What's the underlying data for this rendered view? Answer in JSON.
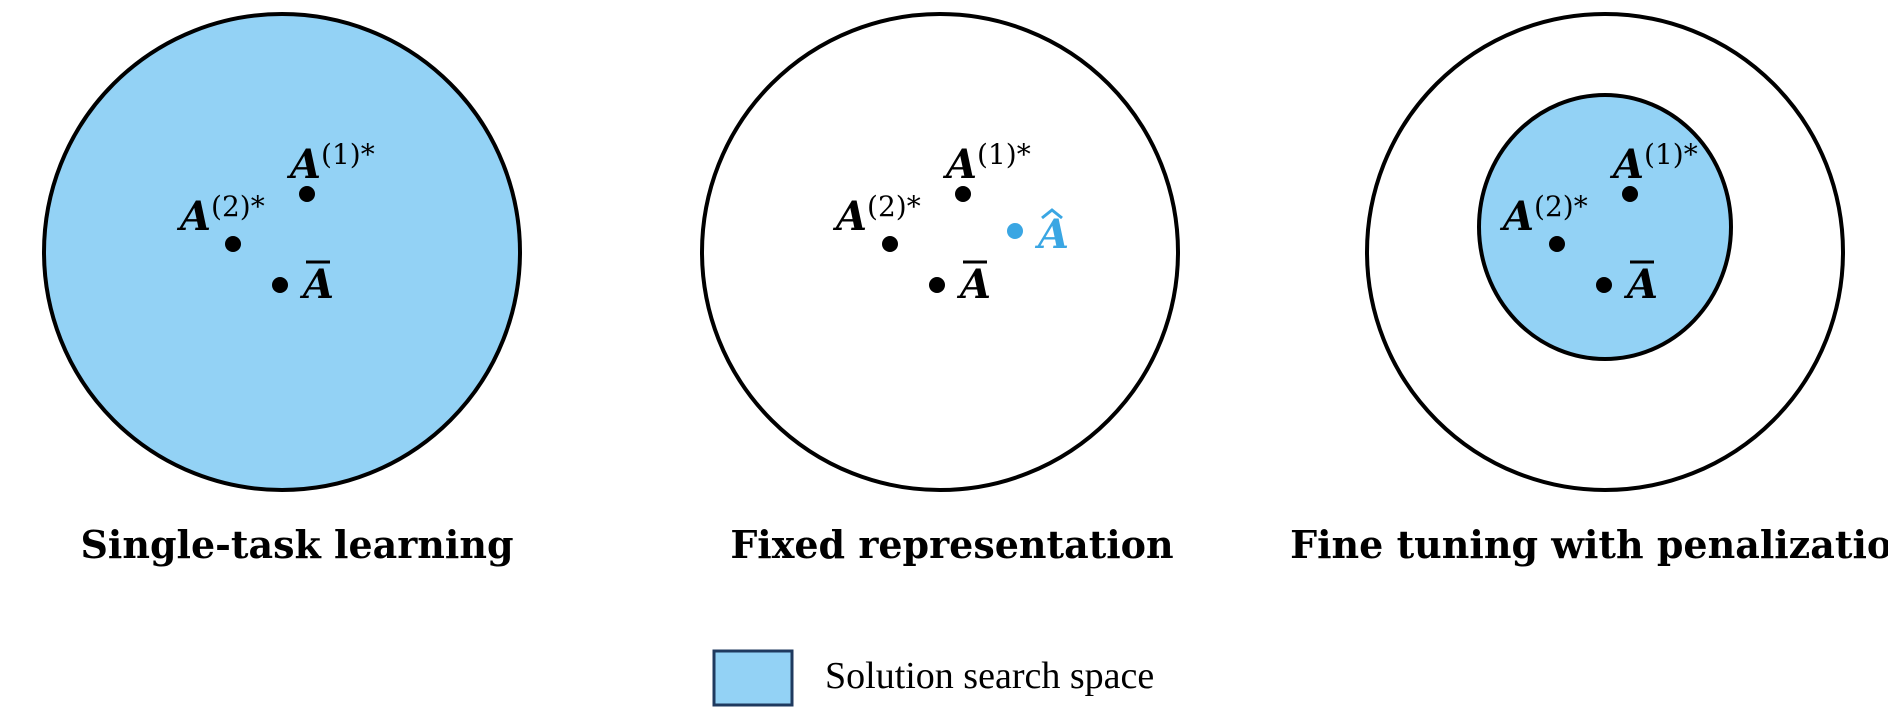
{
  "colors": {
    "fill": "#93d2f5",
    "outline": "#000000",
    "accent": "#3aa6e3",
    "legend_border": "#1f3a5f"
  },
  "panels": [
    {
      "caption": "Single-task learning",
      "outer_filled": true,
      "inner": false,
      "labels": {
        "a1": "A",
        "a1_sup": "(1)*",
        "a2": "A",
        "a2_sup": "(2)*",
        "abar": "A"
      },
      "ahat": null
    },
    {
      "caption": "Fixed representation",
      "outer_filled": false,
      "inner": false,
      "labels": {
        "a1": "A",
        "a1_sup": "(1)*",
        "a2": "A",
        "a2_sup": "(2)*",
        "abar": "A"
      },
      "ahat": "A"
    },
    {
      "caption": "Fine tuning with penalization",
      "outer_filled": false,
      "inner": true,
      "labels": {
        "a1": "A",
        "a1_sup": "(1)*",
        "a2": "A",
        "a2_sup": "(2)*",
        "abar": "A"
      },
      "ahat": null
    }
  ],
  "legend": {
    "label": "Solution search space"
  }
}
